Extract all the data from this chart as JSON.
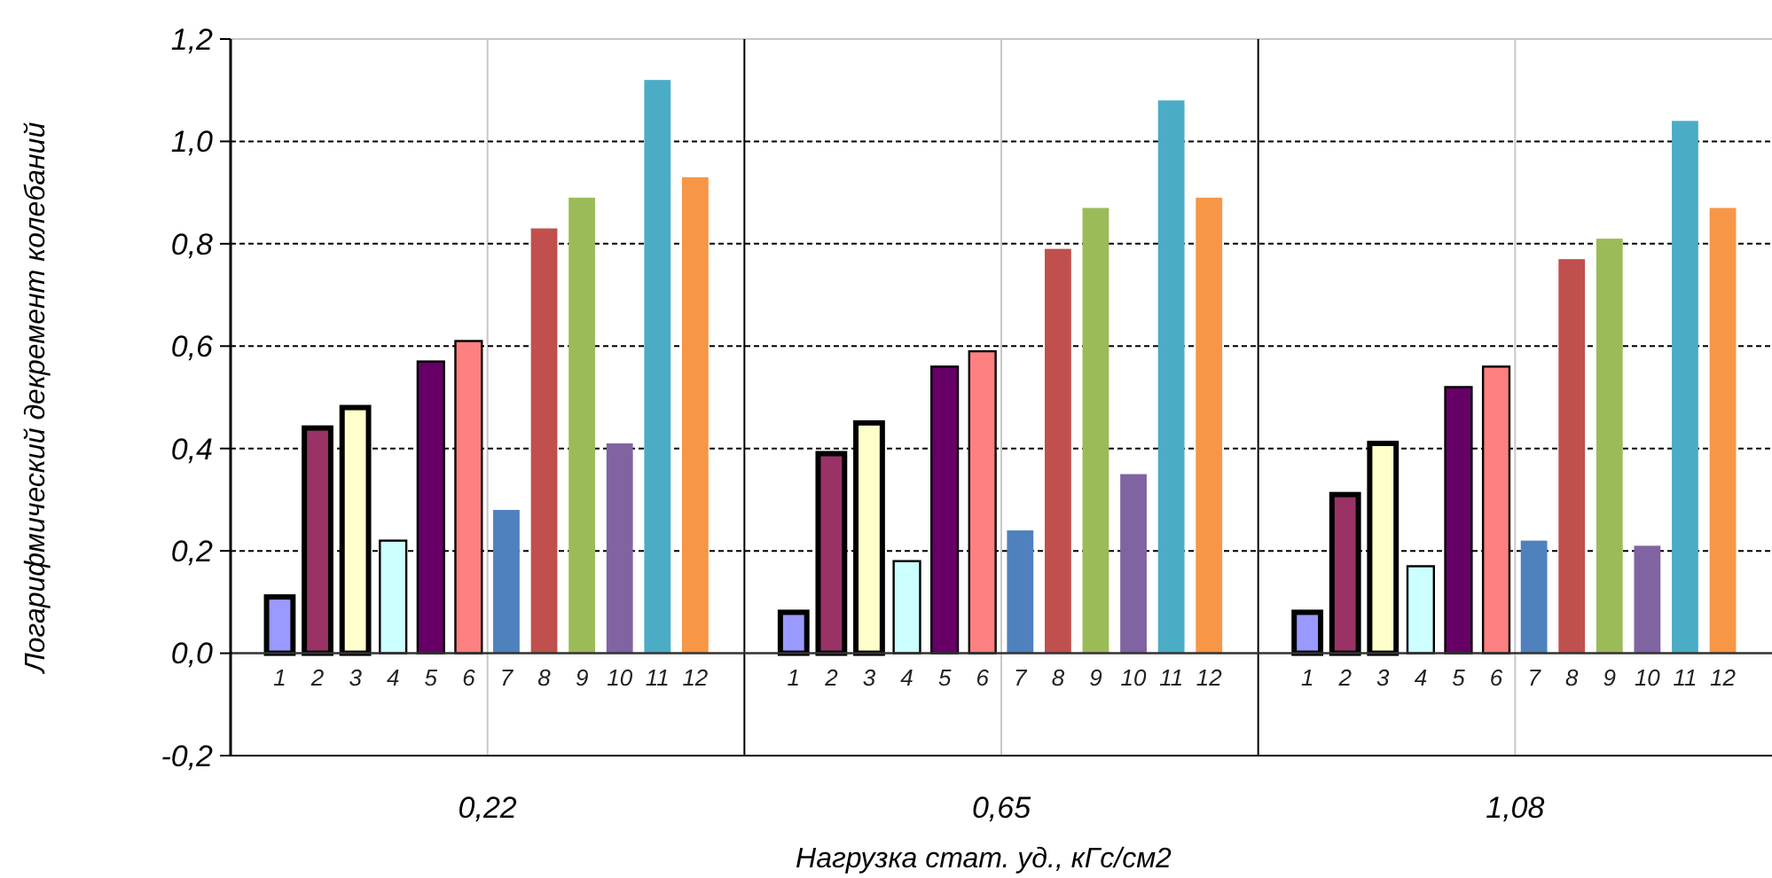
{
  "chart_data": {
    "type": "bar",
    "ylabel": "Логарифмический декремент колебаний",
    "xlabel": "Нагрузка стат. уд., кГс/см2",
    "categories": [
      "0,22",
      "0,65",
      "1,08"
    ],
    "series": [
      {
        "name": "1",
        "color": "#9999ff",
        "values": [
          0.11,
          0.08,
          0.08
        ]
      },
      {
        "name": "2",
        "color": "#993366",
        "values": [
          0.44,
          0.39,
          0.31
        ]
      },
      {
        "name": "3",
        "color": "#ffffcc",
        "values": [
          0.48,
          0.45,
          0.41
        ]
      },
      {
        "name": "4",
        "color": "#ccffff",
        "values": [
          0.22,
          0.18,
          0.17
        ]
      },
      {
        "name": "5",
        "color": "#660066",
        "values": [
          0.57,
          0.56,
          0.52
        ]
      },
      {
        "name": "6",
        "color": "#ff8080",
        "values": [
          0.61,
          0.59,
          0.56
        ]
      },
      {
        "name": "7",
        "color": "#4f81bd",
        "values": [
          0.28,
          0.24,
          0.22
        ]
      },
      {
        "name": "8",
        "color": "#c0504d",
        "values": [
          0.83,
          0.79,
          0.77
        ]
      },
      {
        "name": "9",
        "color": "#9bbb59",
        "values": [
          0.89,
          0.87,
          0.81
        ]
      },
      {
        "name": "10",
        "color": "#8064a2",
        "values": [
          0.41,
          0.35,
          0.21
        ]
      },
      {
        "name": "11",
        "color": "#4bacc6",
        "values": [
          1.12,
          1.08,
          1.04
        ]
      },
      {
        "name": "12",
        "color": "#f79646",
        "values": [
          0.93,
          0.89,
          0.87
        ]
      }
    ],
    "ylim": [
      -0.2,
      1.2
    ],
    "yticks": [
      {
        "value": -0.2,
        "label": "-0,2"
      },
      {
        "value": 0,
        "label": "0,0"
      },
      {
        "value": 0.2,
        "label": "0,2"
      },
      {
        "value": 0.4,
        "label": "0,4"
      },
      {
        "value": 0.6,
        "label": "0,6"
      },
      {
        "value": 0.8,
        "label": "0,8"
      },
      {
        "value": 1.0,
        "label": "1,0"
      },
      {
        "value": 1.2,
        "label": "1,2"
      }
    ],
    "grid": true
  }
}
